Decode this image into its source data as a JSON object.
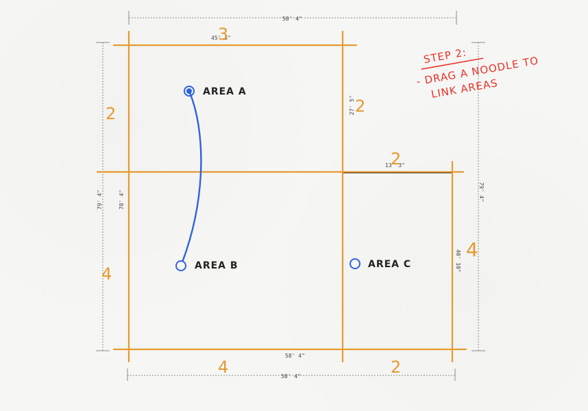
{
  "colors": {
    "wall_line": "#e69a2e",
    "wall_dark": "#2b2b2b",
    "noodle": "#2f62e0",
    "annotation": "#e8312a",
    "dim": "#8a8a8a",
    "text": "#222222"
  },
  "dimensions": {
    "top_total": "58' 4\"",
    "bottom_total": "58' 4\"",
    "bottom_inner": "58' 4\"",
    "room_a_top": "45' 3\"",
    "room_a_right": "27' 5\"",
    "room_c_top": "13' 3\"",
    "left_outer": "79' 4\"",
    "left_inner": "78' 4\"",
    "right_outer": "79' 4\"",
    "room_c_right": "40' 10\""
  },
  "segment_counts": {
    "top": "3",
    "left_upper": "2",
    "room_a_right": "2",
    "room_c_top": "2",
    "left_lower": "4",
    "right_lower": "4",
    "bottom_left": "4",
    "bottom_right": "2"
  },
  "areas": {
    "a": "AREA A",
    "b": "AREA B",
    "c": "AREA C"
  },
  "instruction": {
    "line1": "STEP 2:",
    "line2": "- DRAG A NOODLE TO",
    "line3": "LINK AREAS"
  }
}
